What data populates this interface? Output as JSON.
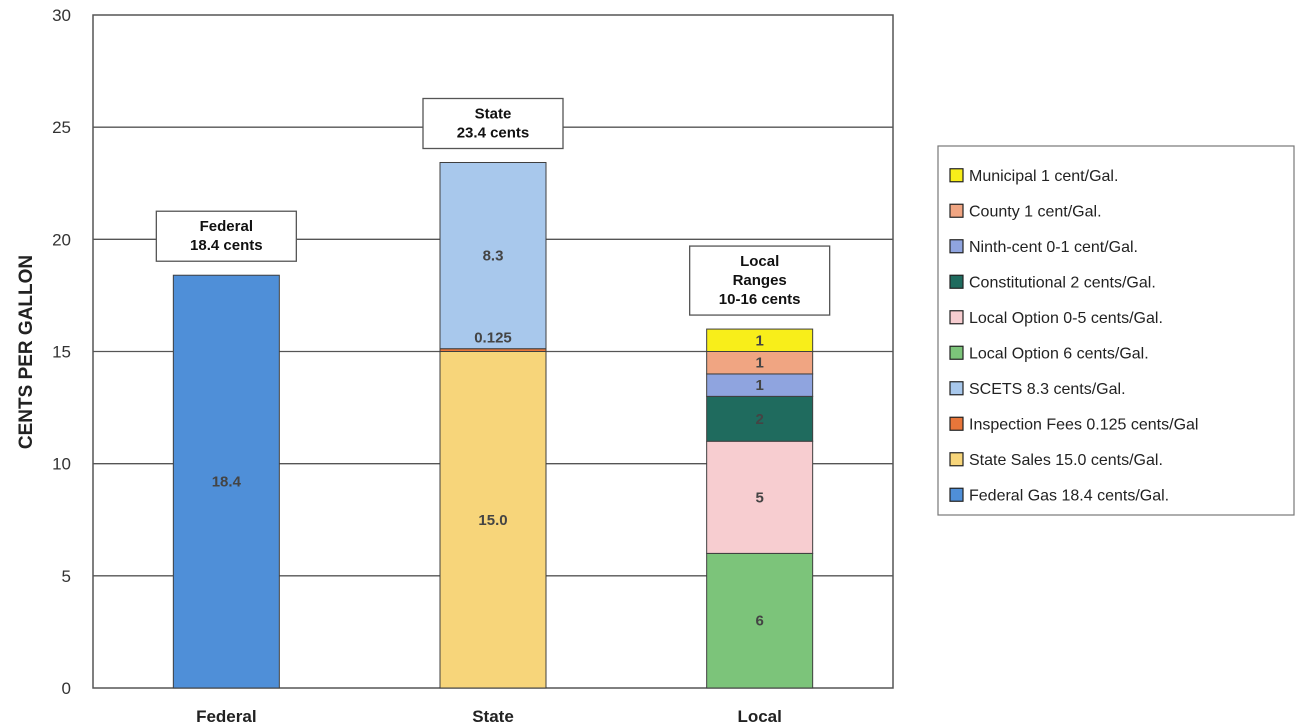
{
  "chart_data": {
    "type": "bar",
    "stacked": true,
    "ylabel": "CENTS PER GALLON",
    "xlabel": "",
    "ylim": [
      0,
      30
    ],
    "yticks": [
      0,
      5,
      10,
      15,
      20,
      25,
      30
    ],
    "grid": true,
    "legend_position": "right",
    "categories": [
      "Federal",
      "State",
      "Local"
    ],
    "series": [
      {
        "name": "Federal Gas 18.4 cents/Gal.",
        "color": "#4F8FD8",
        "values": [
          18.4,
          0,
          0
        ],
        "labels": [
          "18.4",
          "",
          ""
        ]
      },
      {
        "name": "State Sales 15.0 cents/Gal.",
        "color": "#F7D57A",
        "values": [
          0,
          15.0,
          0
        ],
        "labels": [
          "",
          "15.0",
          ""
        ]
      },
      {
        "name": "Inspection Fees 0.125 cents/Gal",
        "color": "#E8763A",
        "values": [
          0,
          0.125,
          0
        ],
        "labels": [
          "",
          "0.125",
          ""
        ]
      },
      {
        "name": "SCETS 8.3 cents/Gal.",
        "color": "#A8C8EC",
        "values": [
          0,
          8.3,
          0
        ],
        "labels": [
          "",
          "8.3",
          ""
        ]
      },
      {
        "name": "Local Option 6 cents/Gal.",
        "color": "#7CC47A",
        "values": [
          0,
          0,
          6
        ],
        "labels": [
          "",
          "",
          "6"
        ]
      },
      {
        "name": "Local Option 0-5 cents/Gal.",
        "color": "#F7CDD0",
        "values": [
          0,
          0,
          5
        ],
        "labels": [
          "",
          "",
          "5"
        ]
      },
      {
        "name": "Constitutional 2 cents/Gal.",
        "color": "#1F6B5E",
        "values": [
          0,
          0,
          2
        ],
        "labels": [
          "",
          "",
          "2"
        ]
      },
      {
        "name": "Ninth-cent 0-1 cent/Gal.",
        "color": "#8FA4DF",
        "values": [
          0,
          0,
          1
        ],
        "labels": [
          "",
          "",
          "1"
        ]
      },
      {
        "name": "County 1 cent/Gal.",
        "color": "#F0A582",
        "values": [
          0,
          0,
          1
        ],
        "labels": [
          "",
          "",
          "1"
        ]
      },
      {
        "name": "Municipal 1 cent/Gal.",
        "color": "#F8EE1A",
        "values": [
          0,
          0,
          1
        ],
        "labels": [
          "",
          "",
          "1"
        ]
      }
    ],
    "callouts": [
      {
        "category": "Federal",
        "lines": [
          "Federal",
          "18.4 cents"
        ]
      },
      {
        "category": "State",
        "lines": [
          "State",
          "23.4 cents"
        ]
      },
      {
        "category": "Local",
        "lines": [
          "Local",
          "Ranges",
          "10-16 cents"
        ]
      }
    ],
    "legend_order": [
      "Municipal 1 cent/Gal.",
      "County 1 cent/Gal.",
      "Ninth-cent 0-1 cent/Gal.",
      "Constitutional 2 cents/Gal.",
      "Local Option 0-5 cents/Gal.",
      "Local Option 6 cents/Gal.",
      "SCETS 8.3 cents/Gal.",
      "Inspection Fees 0.125 cents/Gal",
      "State Sales 15.0 cents/Gal.",
      "Federal Gas 18.4 cents/Gal."
    ]
  }
}
